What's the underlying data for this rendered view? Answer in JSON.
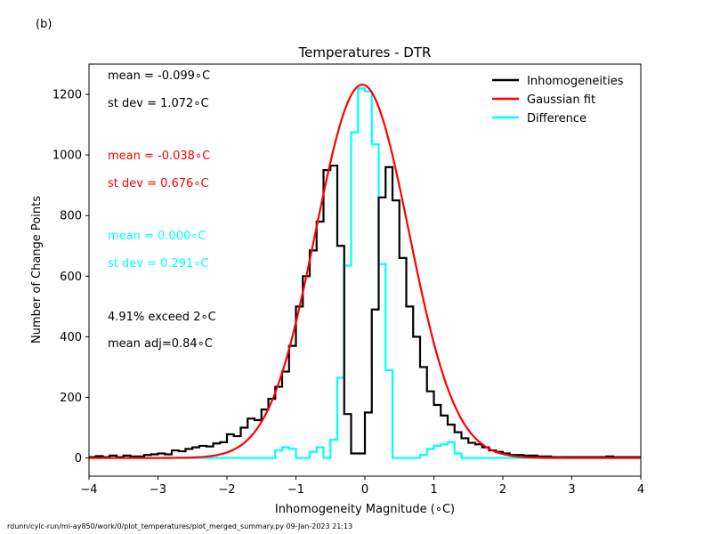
{
  "panel_label": "(b)",
  "footer": "rdunn/cylc-run/mi-ay850/work/0/plot_temperatures/plot_merged_summary.py   09-Jan-2023 21:13",
  "stats": {
    "black": [
      {
        "text": "mean = -0.099$^\\circ$C",
        "display": "mean = -0.099∘C"
      },
      {
        "text": "st dev =  1.072$^\\circ$C",
        "display": "st dev =  1.072∘C"
      }
    ],
    "red": [
      {
        "display": "mean = -0.038∘C"
      },
      {
        "display": "st dev =  0.676∘C"
      }
    ],
    "cyan": [
      {
        "display": "mean =  0.000∘C"
      },
      {
        "display": "st dev =  0.291∘C"
      }
    ],
    "extra": [
      {
        "display": "4.91% exceed 2∘C"
      },
      {
        "display": "mean adj=0.84∘C"
      }
    ]
  },
  "colors": {
    "inhomogeneities": "#000000",
    "gaussian": "#ff0000",
    "difference": "#00ffff"
  },
  "chart_data": {
    "type": "line",
    "title": "Temperatures - DTR",
    "xlabel": "Inhomogeneity Magnitude (∘C)",
    "ylabel": "Number of Change Points",
    "xlim": [
      -4,
      4
    ],
    "ylim": [
      -60,
      1300
    ],
    "xticks": [
      -4,
      -3,
      -2,
      -1,
      0,
      1,
      2,
      3,
      4
    ],
    "yticks": [
      0,
      200,
      400,
      600,
      800,
      1000,
      1200
    ],
    "legend_position": "top-right",
    "bin_edges": [
      -4.0,
      -3.9,
      -3.8,
      -3.7,
      -3.6,
      -3.5,
      -3.4,
      -3.3,
      -3.2,
      -3.1,
      -3.0,
      -2.9,
      -2.8,
      -2.7,
      -2.6,
      -2.5,
      -2.4,
      -2.3,
      -2.2,
      -2.1,
      -2.0,
      -1.9,
      -1.8,
      -1.7,
      -1.6,
      -1.5,
      -1.4,
      -1.3,
      -1.2,
      -1.1,
      -1.0,
      -0.9,
      -0.8,
      -0.7,
      -0.6,
      -0.5,
      -0.4,
      -0.3,
      -0.2,
      -0.1,
      0.0,
      0.1,
      0.2,
      0.3,
      0.4,
      0.5,
      0.6,
      0.7,
      0.8,
      0.9,
      1.0,
      1.1,
      1.2,
      1.3,
      1.4,
      1.5,
      1.6,
      1.7,
      1.8,
      1.9,
      2.0,
      2.1,
      2.2,
      2.3,
      2.4,
      2.5,
      2.6,
      2.7,
      2.8,
      2.9,
      3.0,
      3.1,
      3.2,
      3.3,
      3.4,
      3.5,
      3.6,
      3.7,
      3.8,
      3.9,
      4.0
    ],
    "series": [
      {
        "name": "Inhomogeneities",
        "style": "step",
        "values": [
          3,
          6,
          3,
          8,
          3,
          8,
          5,
          5,
          10,
          12,
          15,
          12,
          25,
          22,
          30,
          35,
          40,
          38,
          48,
          52,
          78,
          72,
          100,
          130,
          125,
          160,
          195,
          235,
          285,
          370,
          500,
          600,
          685,
          780,
          950,
          965,
          700,
          145,
          15,
          15,
          150,
          490,
          860,
          960,
          850,
          660,
          500,
          400,
          300,
          220,
          175,
          140,
          110,
          85,
          65,
          50,
          45,
          35,
          25,
          20,
          15,
          10,
          10,
          8,
          8,
          5,
          5,
          3,
          3,
          3,
          3,
          3,
          3,
          3,
          3,
          5,
          3,
          3,
          3,
          3
        ]
      },
      {
        "name": "Gaussian fit",
        "style": "curve",
        "mu": -0.038,
        "sigma": 0.676,
        "amplitude": 1232
      },
      {
        "name": "Difference",
        "style": "step",
        "values": [
          0,
          0,
          0,
          0,
          0,
          0,
          0,
          0,
          0,
          0,
          0,
          0,
          0,
          0,
          0,
          0,
          0,
          0,
          0,
          0,
          0,
          0,
          0,
          0,
          0,
          0,
          0,
          25,
          35,
          30,
          0,
          0,
          20,
          35,
          0,
          60,
          265,
          635,
          1075,
          1220,
          1210,
          1035,
          640,
          290,
          0,
          0,
          0,
          0,
          10,
          30,
          40,
          45,
          52,
          15,
          0,
          0,
          0,
          0,
          0,
          0,
          0,
          0,
          0,
          0,
          0,
          0,
          0,
          0,
          0,
          0,
          0,
          0,
          0,
          0,
          0,
          0,
          0,
          0,
          0,
          0
        ]
      }
    ]
  }
}
